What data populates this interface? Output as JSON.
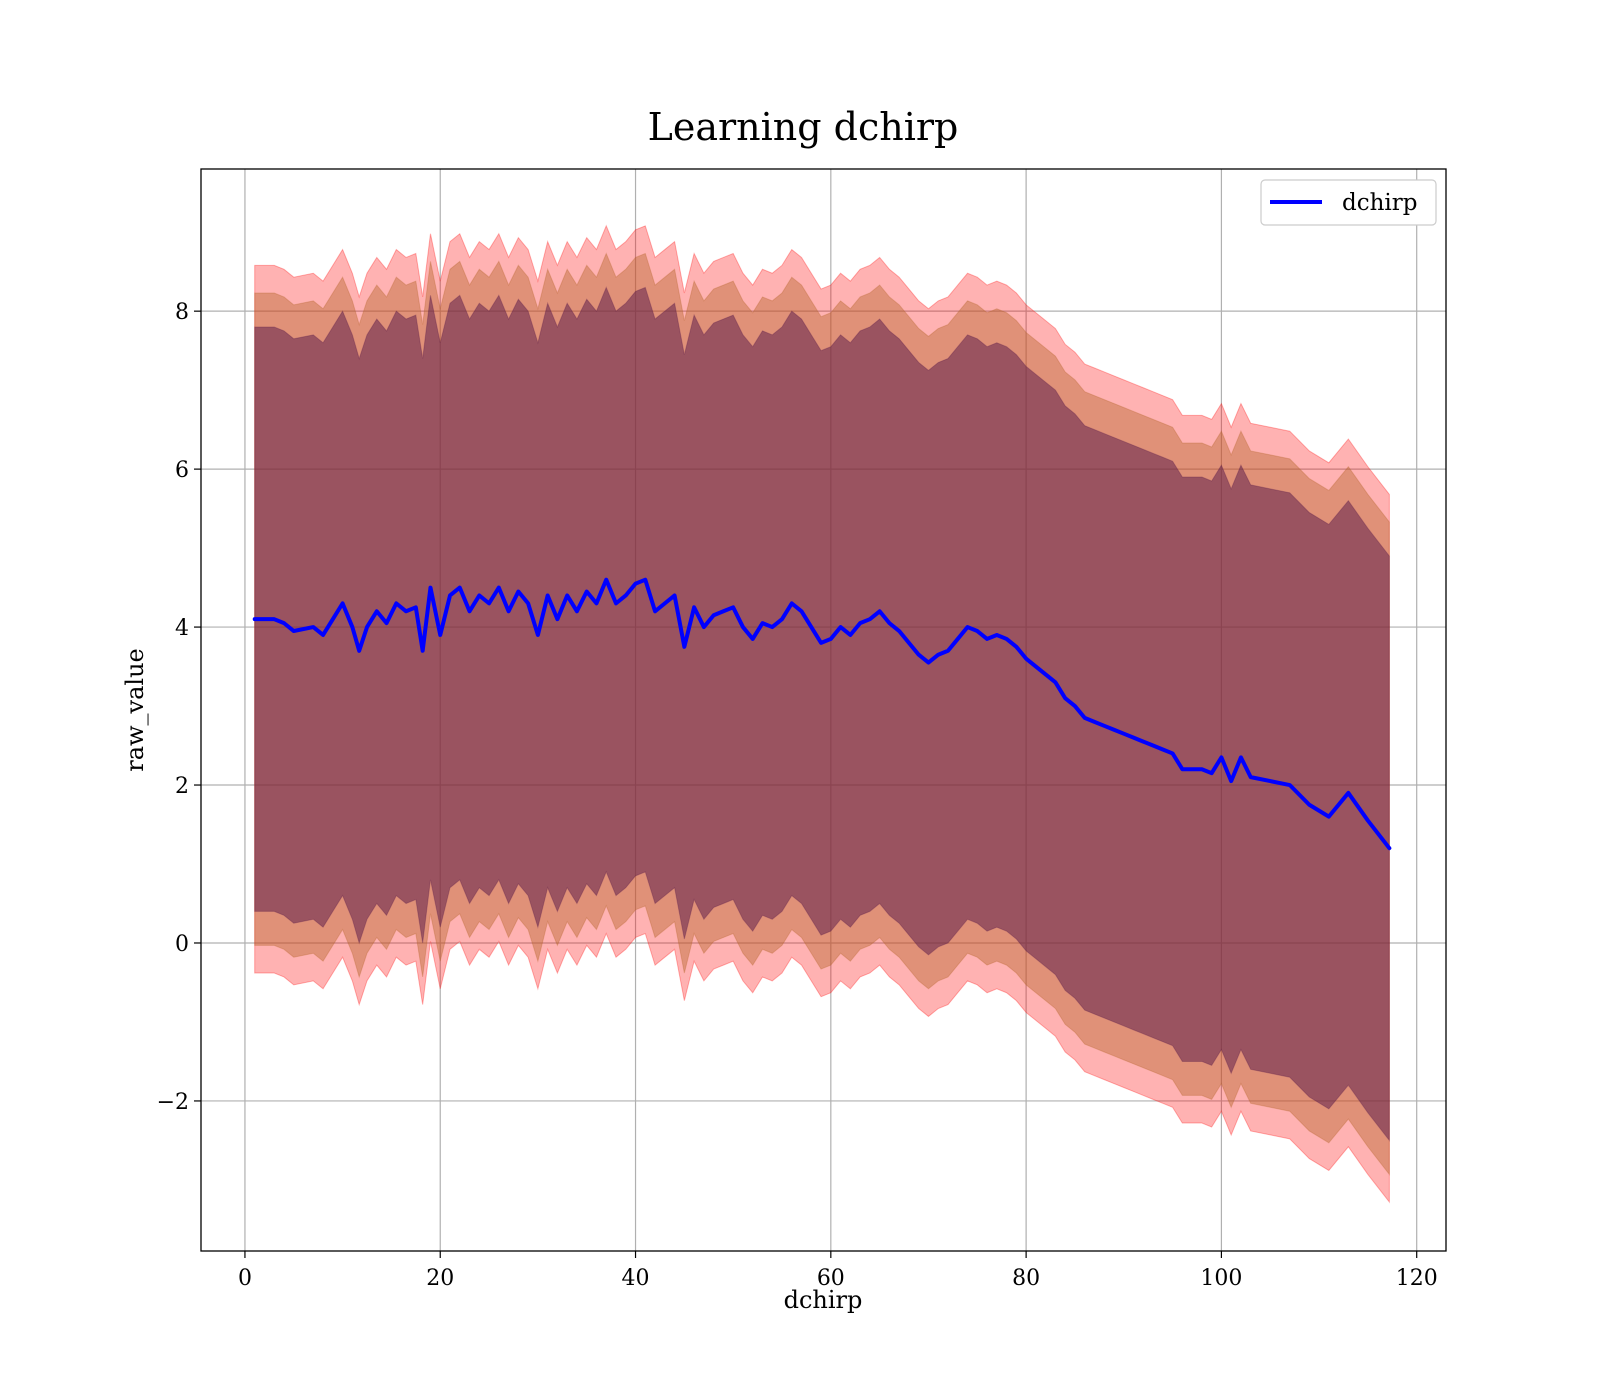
{
  "chart_data": {
    "type": "line",
    "title": "Learning dchirp",
    "xlabel": "dchirp",
    "ylabel": "raw_value",
    "xlim": [
      -4.5,
      123
    ],
    "ylim": [
      -3.9,
      9.8
    ],
    "xticks": [
      0,
      20,
      40,
      60,
      80,
      100,
      120
    ],
    "yticks": [
      -2,
      0,
      2,
      4,
      6,
      8
    ],
    "xtick_labels": [
      "0",
      "20",
      "40",
      "60",
      "80",
      "100",
      "120"
    ],
    "ytick_labels": [
      "−2",
      "0",
      "2",
      "4",
      "6",
      "8"
    ],
    "grid": true,
    "legend_position": "top-right",
    "series": [
      {
        "name": "dchirp",
        "color": "#0000ff",
        "x": [
          1,
          3,
          4,
          5,
          7,
          8,
          9,
          10,
          11,
          11.7,
          12.5,
          13.5,
          14.5,
          15.5,
          16.5,
          17.5,
          18.2,
          19,
          20,
          21,
          22,
          23,
          24,
          25,
          26,
          27,
          28,
          29,
          30,
          31,
          32,
          33,
          34,
          35,
          36,
          37,
          38,
          39,
          40,
          41,
          42,
          43,
          44,
          45,
          46,
          47,
          48,
          49,
          50,
          51,
          52,
          53,
          54,
          55,
          56,
          57,
          58,
          59,
          60,
          61,
          62,
          63,
          64,
          65,
          66,
          67,
          68,
          69,
          70,
          71,
          72,
          73,
          74,
          75,
          76,
          77,
          78,
          79,
          80,
          81,
          82,
          83,
          84,
          85,
          86,
          87,
          88,
          89,
          90,
          91,
          92,
          93,
          94,
          95,
          96,
          97,
          98,
          99,
          100,
          101,
          102,
          103,
          105,
          107,
          109,
          111,
          113,
          115,
          117.2
        ],
        "values": [
          4.1,
          4.1,
          4.05,
          3.95,
          4.0,
          3.9,
          4.1,
          4.3,
          4.0,
          3.7,
          4.0,
          4.2,
          4.05,
          4.3,
          4.2,
          4.25,
          3.7,
          4.5,
          3.9,
          4.4,
          4.5,
          4.2,
          4.4,
          4.3,
          4.5,
          4.2,
          4.45,
          4.3,
          3.9,
          4.4,
          4.1,
          4.4,
          4.2,
          4.45,
          4.3,
          4.6,
          4.3,
          4.4,
          4.55,
          4.6,
          4.2,
          4.3,
          4.4,
          3.75,
          4.25,
          4.0,
          4.15,
          4.2,
          4.25,
          4.0,
          3.85,
          4.05,
          4.0,
          4.1,
          4.3,
          4.2,
          4.0,
          3.8,
          3.85,
          4.0,
          3.9,
          4.05,
          4.1,
          4.2,
          4.05,
          3.95,
          3.8,
          3.65,
          3.55,
          3.65,
          3.7,
          3.85,
          4.0,
          3.95,
          3.85,
          3.9,
          3.85,
          3.75,
          3.6,
          3.5,
          3.4,
          3.3,
          3.1,
          3.0,
          2.85,
          2.8,
          2.75,
          2.7,
          2.65,
          2.6,
          2.55,
          2.5,
          2.45,
          2.4,
          2.2,
          2.2,
          2.2,
          2.15,
          2.35,
          2.05,
          2.35,
          2.1,
          2.05,
          2.0,
          1.75,
          1.6,
          1.9,
          1.55,
          1.2
        ]
      }
    ],
    "bands": [
      {
        "color": "#ff0000",
        "opacity": 0.3,
        "offset": 4.48
      },
      {
        "color": "#b46428",
        "opacity": 0.42,
        "offset": 4.13
      },
      {
        "color": "#5a1a4a",
        "opacity": 0.52,
        "offset": 3.7
      }
    ]
  }
}
